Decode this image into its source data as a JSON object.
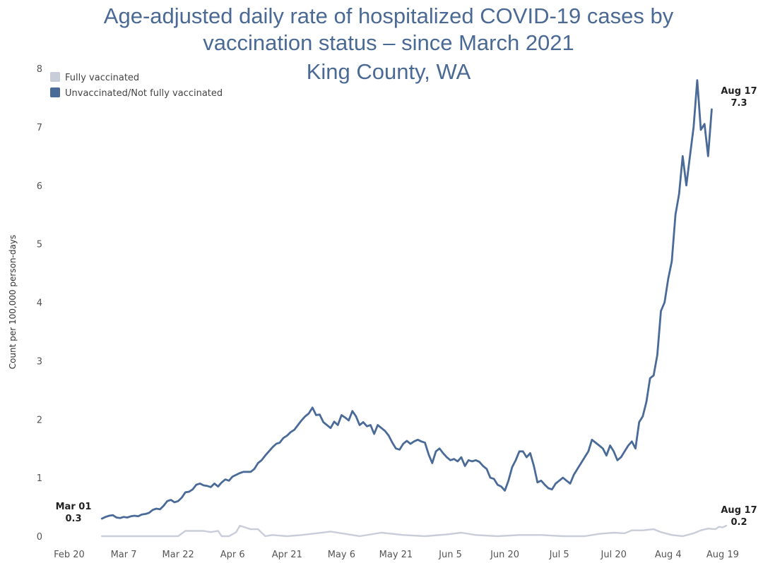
{
  "chart_data": {
    "type": "line",
    "title": [
      "Age-adjusted daily rate of hospitalized COVID-19 cases by",
      "vaccination status – since March 2021",
      "King County, WA"
    ],
    "xlabel": "",
    "ylabel": "Count per 100,000 person-days",
    "ylim": [
      0,
      8
    ],
    "yticks": [
      "0",
      "1",
      "2",
      "3",
      "4",
      "5",
      "6",
      "7",
      "8"
    ],
    "x_ticks": [
      "Feb 20",
      "Mar 7",
      "Mar 22",
      "Apr 6",
      "Apr 21",
      "May 6",
      "May 21",
      "Jun 5",
      "Jun 20",
      "Jul 5",
      "Jul 20",
      "Aug 4",
      "Aug 19"
    ],
    "x_tick_days": [
      0,
      15,
      30,
      45,
      60,
      75,
      90,
      105,
      120,
      135,
      150,
      165,
      180
    ],
    "xlim_days": [
      0,
      181
    ],
    "legend_position": "top-left",
    "series": [
      {
        "name": "Fully vaccinated",
        "color": "#c9cdd9",
        "points": [
          [
            9,
            0.0
          ],
          [
            30,
            0.0
          ],
          [
            32,
            0.09
          ],
          [
            37,
            0.09
          ],
          [
            39,
            0.07
          ],
          [
            41,
            0.09
          ],
          [
            42,
            0.0
          ],
          [
            44,
            0.0
          ],
          [
            46,
            0.07
          ],
          [
            47,
            0.18
          ],
          [
            50,
            0.12
          ],
          [
            52,
            0.12
          ],
          [
            54,
            0.0
          ],
          [
            56,
            0.02
          ],
          [
            60,
            0.0
          ],
          [
            64,
            0.02
          ],
          [
            68,
            0.05
          ],
          [
            72,
            0.08
          ],
          [
            76,
            0.04
          ],
          [
            80,
            0.0
          ],
          [
            86,
            0.06
          ],
          [
            92,
            0.02
          ],
          [
            98,
            0.0
          ],
          [
            104,
            0.03
          ],
          [
            108,
            0.06
          ],
          [
            112,
            0.02
          ],
          [
            118,
            0.0
          ],
          [
            124,
            0.02
          ],
          [
            130,
            0.02
          ],
          [
            136,
            0.0
          ],
          [
            142,
            0.0
          ],
          [
            146,
            0.04
          ],
          [
            150,
            0.06
          ],
          [
            153,
            0.05
          ],
          [
            155,
            0.1
          ],
          [
            158,
            0.1
          ],
          [
            161,
            0.12
          ],
          [
            163,
            0.07
          ],
          [
            166,
            0.02
          ],
          [
            169,
            0.0
          ],
          [
            172,
            0.05
          ],
          [
            174,
            0.1
          ],
          [
            176,
            0.13
          ],
          [
            178,
            0.12
          ],
          [
            179,
            0.16
          ],
          [
            180,
            0.15
          ],
          [
            181,
            0.18
          ]
        ]
      },
      {
        "name": "Unvaccinated/Not fully vaccinated",
        "color": "#4a6a98",
        "points": [
          [
            9,
            0.3
          ],
          [
            10,
            0.33
          ],
          [
            11,
            0.35
          ],
          [
            12,
            0.36
          ],
          [
            13,
            0.32
          ],
          [
            14,
            0.31
          ],
          [
            15,
            0.33
          ],
          [
            16,
            0.32
          ],
          [
            17,
            0.34
          ],
          [
            18,
            0.35
          ],
          [
            19,
            0.34
          ],
          [
            20,
            0.37
          ],
          [
            21,
            0.38
          ],
          [
            22,
            0.4
          ],
          [
            23,
            0.45
          ],
          [
            24,
            0.47
          ],
          [
            25,
            0.46
          ],
          [
            26,
            0.52
          ],
          [
            27,
            0.6
          ],
          [
            28,
            0.62
          ],
          [
            29,
            0.58
          ],
          [
            30,
            0.6
          ],
          [
            31,
            0.66
          ],
          [
            32,
            0.75
          ],
          [
            33,
            0.76
          ],
          [
            34,
            0.8
          ],
          [
            35,
            0.88
          ],
          [
            36,
            0.9
          ],
          [
            37,
            0.87
          ],
          [
            38,
            0.86
          ],
          [
            39,
            0.84
          ],
          [
            40,
            0.9
          ],
          [
            41,
            0.85
          ],
          [
            42,
            0.92
          ],
          [
            43,
            0.97
          ],
          [
            44,
            0.95
          ],
          [
            45,
            1.02
          ],
          [
            46,
            1.05
          ],
          [
            47,
            1.08
          ],
          [
            48,
            1.1
          ],
          [
            49,
            1.1
          ],
          [
            50,
            1.1
          ],
          [
            51,
            1.15
          ],
          [
            52,
            1.25
          ],
          [
            53,
            1.3
          ],
          [
            54,
            1.38
          ],
          [
            55,
            1.45
          ],
          [
            56,
            1.52
          ],
          [
            57,
            1.58
          ],
          [
            58,
            1.6
          ],
          [
            59,
            1.68
          ],
          [
            60,
            1.72
          ],
          [
            61,
            1.78
          ],
          [
            62,
            1.82
          ],
          [
            63,
            1.9
          ],
          [
            64,
            1.98
          ],
          [
            65,
            2.05
          ],
          [
            66,
            2.1
          ],
          [
            67,
            2.2
          ],
          [
            68,
            2.07
          ],
          [
            69,
            2.08
          ],
          [
            70,
            1.95
          ],
          [
            71,
            1.9
          ],
          [
            72,
            1.85
          ],
          [
            73,
            1.96
          ],
          [
            74,
            1.9
          ],
          [
            75,
            2.07
          ],
          [
            76,
            2.03
          ],
          [
            77,
            1.98
          ],
          [
            78,
            2.14
          ],
          [
            79,
            2.05
          ],
          [
            80,
            1.9
          ],
          [
            81,
            1.95
          ],
          [
            82,
            1.88
          ],
          [
            83,
            1.9
          ],
          [
            84,
            1.75
          ],
          [
            85,
            1.9
          ],
          [
            86,
            1.85
          ],
          [
            87,
            1.8
          ],
          [
            88,
            1.72
          ],
          [
            89,
            1.6
          ],
          [
            90,
            1.5
          ],
          [
            91,
            1.48
          ],
          [
            92,
            1.58
          ],
          [
            93,
            1.63
          ],
          [
            94,
            1.58
          ],
          [
            95,
            1.62
          ],
          [
            96,
            1.65
          ],
          [
            97,
            1.62
          ],
          [
            98,
            1.6
          ],
          [
            99,
            1.4
          ],
          [
            100,
            1.25
          ],
          [
            101,
            1.45
          ],
          [
            102,
            1.5
          ],
          [
            103,
            1.42
          ],
          [
            104,
            1.35
          ],
          [
            105,
            1.3
          ],
          [
            106,
            1.32
          ],
          [
            107,
            1.28
          ],
          [
            108,
            1.35
          ],
          [
            109,
            1.2
          ],
          [
            110,
            1.3
          ],
          [
            111,
            1.28
          ],
          [
            112,
            1.3
          ],
          [
            113,
            1.27
          ],
          [
            114,
            1.2
          ],
          [
            115,
            1.15
          ],
          [
            116,
            1.0
          ],
          [
            117,
            0.98
          ],
          [
            118,
            0.88
          ],
          [
            119,
            0.85
          ],
          [
            120,
            0.78
          ],
          [
            121,
            0.95
          ],
          [
            122,
            1.18
          ],
          [
            123,
            1.3
          ],
          [
            124,
            1.45
          ],
          [
            125,
            1.45
          ],
          [
            126,
            1.35
          ],
          [
            127,
            1.42
          ],
          [
            128,
            1.2
          ],
          [
            129,
            0.92
          ],
          [
            130,
            0.95
          ],
          [
            131,
            0.88
          ],
          [
            132,
            0.82
          ],
          [
            133,
            0.8
          ],
          [
            134,
            0.9
          ],
          [
            135,
            0.95
          ],
          [
            136,
            1.0
          ],
          [
            137,
            0.95
          ],
          [
            138,
            0.9
          ],
          [
            139,
            1.05
          ],
          [
            140,
            1.15
          ],
          [
            141,
            1.25
          ],
          [
            142,
            1.35
          ],
          [
            143,
            1.45
          ],
          [
            144,
            1.65
          ],
          [
            145,
            1.6
          ],
          [
            146,
            1.55
          ],
          [
            147,
            1.5
          ],
          [
            148,
            1.38
          ],
          [
            149,
            1.55
          ],
          [
            150,
            1.45
          ],
          [
            151,
            1.3
          ],
          [
            152,
            1.35
          ],
          [
            153,
            1.45
          ],
          [
            154,
            1.55
          ],
          [
            155,
            1.62
          ],
          [
            156,
            1.5
          ],
          [
            157,
            1.95
          ],
          [
            158,
            2.05
          ],
          [
            159,
            2.3
          ],
          [
            160,
            2.7
          ],
          [
            161,
            2.75
          ],
          [
            162,
            3.1
          ],
          [
            163,
            3.85
          ],
          [
            164,
            4.0
          ],
          [
            165,
            4.4
          ],
          [
            166,
            4.7
          ],
          [
            167,
            5.5
          ],
          [
            168,
            5.85
          ],
          [
            169,
            6.5
          ],
          [
            170,
            6.0
          ],
          [
            171,
            6.5
          ],
          [
            172,
            7.0
          ],
          [
            173,
            7.8
          ],
          [
            174,
            6.95
          ],
          [
            175,
            7.05
          ],
          [
            176,
            6.5
          ],
          [
            177,
            7.3
          ]
        ]
      }
    ],
    "annotations": [
      {
        "date": "Mar 01",
        "value": "0.3"
      },
      {
        "date": "Aug 17",
        "value": "7.3"
      },
      {
        "date": "Aug 17",
        "value": "0.2"
      }
    ]
  }
}
